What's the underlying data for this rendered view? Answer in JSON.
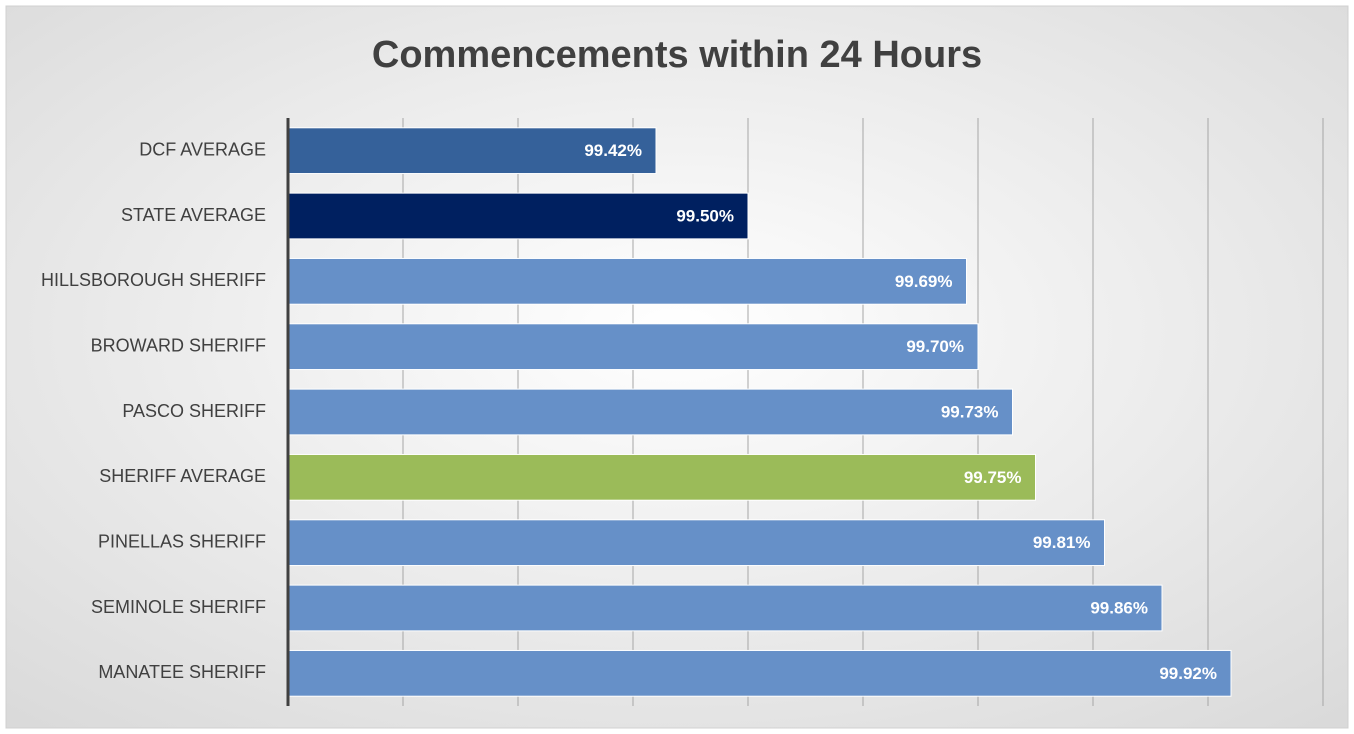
{
  "chart_data": {
    "type": "bar",
    "orientation": "horizontal",
    "title": "Commencements within 24 Hours",
    "categories": [
      "DCF AVERAGE",
      "STATE AVERAGE",
      "HILLSBOROUGH SHERIFF",
      "BROWARD SHERIFF",
      "PASCO SHERIFF",
      "SHERIFF AVERAGE",
      "PINELLAS SHERIFF",
      "SEMINOLE SHERIFF",
      "MANATEE SHERIFF"
    ],
    "values": [
      99.42,
      99.5,
      99.69,
      99.7,
      99.73,
      99.75,
      99.81,
      99.86,
      99.92
    ],
    "value_labels": [
      "99.42%",
      "99.50%",
      "99.69%",
      "99.70%",
      "99.73%",
      "99.75%",
      "99.81%",
      "99.86%",
      "99.92%"
    ],
    "colors": [
      "#35619a",
      "#002060",
      "#6690c8",
      "#6690c8",
      "#6690c8",
      "#9bbb59",
      "#6690c8",
      "#6690c8",
      "#6690c8"
    ],
    "xlim": [
      99.1,
      100.0
    ],
    "xticks": [
      99.1,
      99.2,
      99.3,
      99.4,
      99.5,
      99.6,
      99.7,
      99.8,
      99.9,
      100.0
    ],
    "grid": true
  }
}
